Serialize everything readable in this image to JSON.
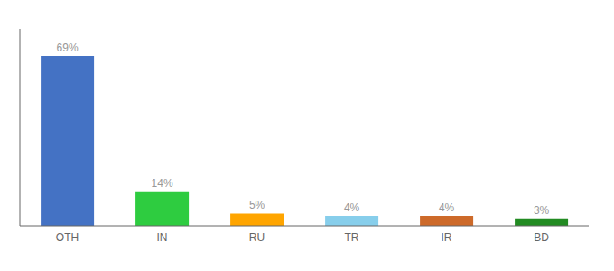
{
  "chart_data": {
    "type": "bar",
    "categories": [
      "OTH",
      "IN",
      "RU",
      "TR",
      "IR",
      "BD"
    ],
    "values": [
      69,
      14,
      5,
      4,
      4,
      3
    ],
    "value_labels": [
      "69%",
      "14%",
      "5%",
      "4%",
      "4%",
      "3%"
    ],
    "data_labels": true,
    "colors": [
      "#4472C4",
      "#2ECC40",
      "#FFA500",
      "#87CEEB",
      "#CD6A2A",
      "#228B22"
    ],
    "ylim": [
      0,
      80
    ],
    "tick_labels": "x",
    "grid": false
  }
}
